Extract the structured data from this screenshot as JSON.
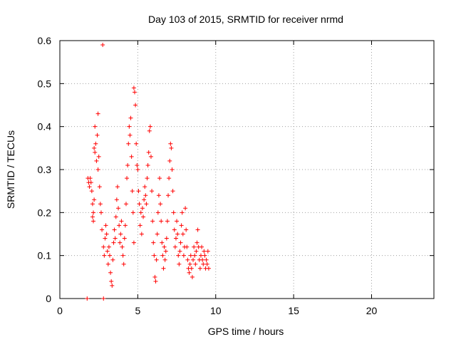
{
  "chart_data": {
    "type": "scatter",
    "title": "Day 103 of 2015, SRMTID for receiver nrmd",
    "xlabel": "GPS time / hours",
    "ylabel": "SRMTID / TECUs",
    "xlim": [
      0,
      24
    ],
    "ylim": [
      0,
      0.6
    ],
    "xticks": [
      0,
      5,
      10,
      15,
      20
    ],
    "yticks": [
      0,
      0.1,
      0.2,
      0.3,
      0.4,
      0.5,
      0.6
    ],
    "grid": true,
    "marker": "+",
    "color": "#ff0000",
    "series": [
      {
        "name": "SRMTID",
        "points": [
          [
            1.75,
            0.0
          ],
          [
            2.8,
            0.0
          ],
          [
            1.8,
            0.28
          ],
          [
            1.85,
            0.27
          ],
          [
            1.9,
            0.26
          ],
          [
            1.95,
            0.28
          ],
          [
            2.0,
            0.27
          ],
          [
            2.05,
            0.25
          ],
          [
            2.1,
            0.22
          ],
          [
            2.1,
            0.19
          ],
          [
            2.15,
            0.2
          ],
          [
            2.15,
            0.18
          ],
          [
            2.2,
            0.23
          ],
          [
            2.2,
            0.35
          ],
          [
            2.25,
            0.34
          ],
          [
            2.25,
            0.4
          ],
          [
            2.3,
            0.36
          ],
          [
            2.35,
            0.32
          ],
          [
            2.4,
            0.38
          ],
          [
            2.45,
            0.43
          ],
          [
            2.45,
            0.3
          ],
          [
            2.5,
            0.33
          ],
          [
            2.55,
            0.26
          ],
          [
            2.6,
            0.22
          ],
          [
            2.65,
            0.2
          ],
          [
            2.7,
            0.16
          ],
          [
            2.75,
            0.59
          ],
          [
            2.8,
            0.12
          ],
          [
            2.85,
            0.1
          ],
          [
            2.9,
            0.14
          ],
          [
            2.95,
            0.17
          ],
          [
            3.0,
            0.15
          ],
          [
            3.05,
            0.11
          ],
          [
            3.1,
            0.08
          ],
          [
            3.15,
            0.12
          ],
          [
            3.2,
            0.1
          ],
          [
            3.25,
            0.06
          ],
          [
            3.3,
            0.04
          ],
          [
            3.35,
            0.03
          ],
          [
            3.4,
            0.09
          ],
          [
            3.45,
            0.13
          ],
          [
            3.5,
            0.16
          ],
          [
            3.55,
            0.14
          ],
          [
            3.6,
            0.19
          ],
          [
            3.65,
            0.23
          ],
          [
            3.7,
            0.26
          ],
          [
            3.75,
            0.21
          ],
          [
            3.8,
            0.17
          ],
          [
            3.85,
            0.13
          ],
          [
            3.9,
            0.15
          ],
          [
            3.95,
            0.18
          ],
          [
            4.0,
            0.12
          ],
          [
            4.05,
            0.1
          ],
          [
            4.1,
            0.08
          ],
          [
            4.15,
            0.14
          ],
          [
            4.2,
            0.17
          ],
          [
            4.25,
            0.22
          ],
          [
            4.3,
            0.28
          ],
          [
            4.35,
            0.31
          ],
          [
            4.4,
            0.36
          ],
          [
            4.45,
            0.4
          ],
          [
            4.5,
            0.38
          ],
          [
            4.55,
            0.42
          ],
          [
            4.6,
            0.33
          ],
          [
            4.65,
            0.25
          ],
          [
            4.7,
            0.2
          ],
          [
            4.75,
            0.13
          ],
          [
            4.75,
            0.49
          ],
          [
            4.8,
            0.48
          ],
          [
            4.85,
            0.45
          ],
          [
            4.9,
            0.36
          ],
          [
            4.95,
            0.31
          ],
          [
            5.0,
            0.3
          ],
          [
            5.05,
            0.25
          ],
          [
            5.1,
            0.22
          ],
          [
            5.15,
            0.17
          ],
          [
            5.2,
            0.2
          ],
          [
            5.25,
            0.15
          ],
          [
            5.3,
            0.21
          ],
          [
            5.35,
            0.19
          ],
          [
            5.4,
            0.23
          ],
          [
            5.45,
            0.26
          ],
          [
            5.5,
            0.24
          ],
          [
            5.55,
            0.22
          ],
          [
            5.6,
            0.28
          ],
          [
            5.65,
            0.31
          ],
          [
            5.7,
            0.34
          ],
          [
            5.75,
            0.39
          ],
          [
            5.8,
            0.4
          ],
          [
            5.85,
            0.33
          ],
          [
            5.9,
            0.25
          ],
          [
            5.95,
            0.18
          ],
          [
            6.0,
            0.13
          ],
          [
            6.05,
            0.1
          ],
          [
            6.1,
            0.05
          ],
          [
            6.15,
            0.04
          ],
          [
            6.2,
            0.09
          ],
          [
            6.25,
            0.15
          ],
          [
            6.3,
            0.2
          ],
          [
            6.35,
            0.24
          ],
          [
            6.4,
            0.28
          ],
          [
            6.45,
            0.22
          ],
          [
            6.5,
            0.18
          ],
          [
            6.55,
            0.13
          ],
          [
            6.6,
            0.1
          ],
          [
            6.65,
            0.07
          ],
          [
            6.7,
            0.12
          ],
          [
            6.75,
            0.09
          ],
          [
            6.8,
            0.11
          ],
          [
            6.85,
            0.14
          ],
          [
            6.9,
            0.18
          ],
          [
            6.95,
            0.24
          ],
          [
            7.0,
            0.28
          ],
          [
            7.05,
            0.32
          ],
          [
            7.1,
            0.36
          ],
          [
            7.15,
            0.35
          ],
          [
            7.2,
            0.3
          ],
          [
            7.25,
            0.25
          ],
          [
            7.3,
            0.2
          ],
          [
            7.35,
            0.16
          ],
          [
            7.4,
            0.12
          ],
          [
            7.45,
            0.14
          ],
          [
            7.5,
            0.18
          ],
          [
            7.55,
            0.15
          ],
          [
            7.6,
            0.1
          ],
          [
            7.65,
            0.08
          ],
          [
            7.7,
            0.11
          ],
          [
            7.75,
            0.13
          ],
          [
            7.8,
            0.17
          ],
          [
            7.85,
            0.2
          ],
          [
            7.9,
            0.15
          ],
          [
            7.95,
            0.1
          ],
          [
            8.0,
            0.12
          ],
          [
            8.05,
            0.21
          ],
          [
            8.1,
            0.16
          ],
          [
            8.15,
            0.12
          ],
          [
            8.2,
            0.09
          ],
          [
            8.25,
            0.07
          ],
          [
            8.3,
            0.06
          ],
          [
            8.35,
            0.08
          ],
          [
            8.4,
            0.1
          ],
          [
            8.45,
            0.07
          ],
          [
            8.5,
            0.05
          ],
          [
            8.55,
            0.09
          ],
          [
            8.6,
            0.12
          ],
          [
            8.65,
            0.1
          ],
          [
            8.7,
            0.08
          ],
          [
            8.75,
            0.11
          ],
          [
            8.8,
            0.13
          ],
          [
            8.85,
            0.16
          ],
          [
            8.9,
            0.12
          ],
          [
            8.95,
            0.09
          ],
          [
            9.0,
            0.07
          ],
          [
            9.05,
            0.1
          ],
          [
            9.1,
            0.12
          ],
          [
            9.15,
            0.09
          ],
          [
            9.2,
            0.08
          ],
          [
            9.25,
            0.11
          ],
          [
            9.3,
            0.1
          ],
          [
            9.35,
            0.07
          ],
          [
            9.4,
            0.09
          ],
          [
            9.45,
            0.08
          ],
          [
            9.5,
            0.11
          ],
          [
            9.55,
            0.07
          ]
        ]
      }
    ]
  }
}
